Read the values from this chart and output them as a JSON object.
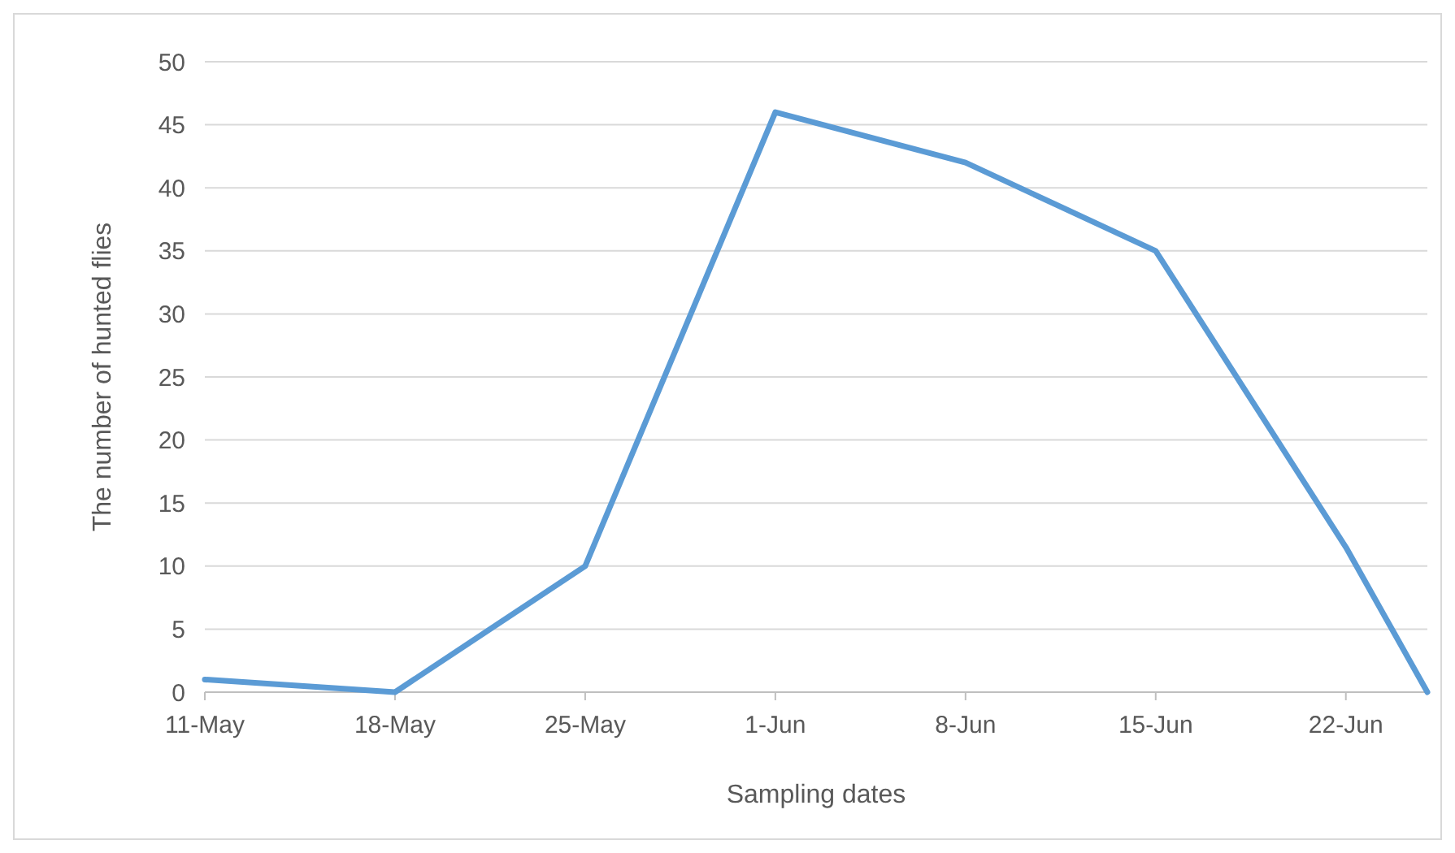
{
  "chart_data": {
    "type": "line",
    "xlabel": "Sampling dates",
    "ylabel": "The number of hunted flies",
    "x": [
      "--05-11",
      "--05-18",
      "--05-25",
      "--06-01",
      "--06-08",
      "--06-15",
      "--06-22",
      "--06-25"
    ],
    "series": [
      {
        "color": "#5b9bd5",
        "values": [
          1,
          0,
          10,
          46,
          42,
          35,
          11.5,
          0
        ]
      }
    ],
    "xlim": [
      "--05-11",
      "--06-25"
    ],
    "xticks": [
      {
        "value": "--05-11",
        "label": "11-May"
      },
      {
        "value": "--05-18",
        "label": "18-May"
      },
      {
        "value": "--05-25",
        "label": "25-May"
      },
      {
        "value": "--06-01",
        "label": "1-Jun"
      },
      {
        "value": "--06-08",
        "label": "8-Jun"
      },
      {
        "value": "--06-15",
        "label": "15-Jun"
      },
      {
        "value": "--06-22",
        "label": "22-Jun"
      }
    ],
    "ylim": [
      0,
      50
    ],
    "yticks": [
      0,
      5,
      10,
      15,
      20,
      25,
      30,
      35,
      40,
      45,
      50
    ],
    "grid": "y",
    "marker": "none",
    "line_style": "solid"
  }
}
